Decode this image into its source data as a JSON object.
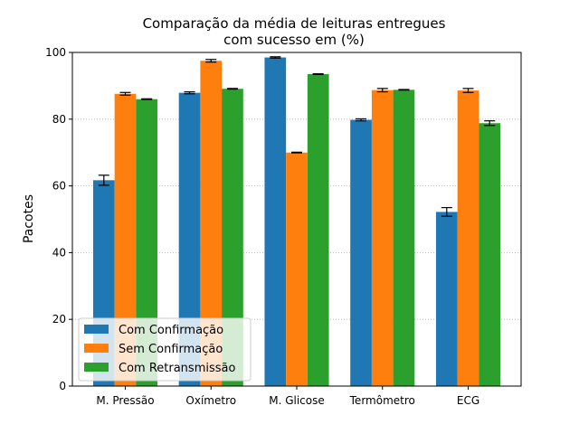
{
  "chart_data": {
    "type": "bar",
    "title_line1": "Comparação da média de leituras entregues",
    "title_line2": "com sucesso em (%)",
    "xlabel": "",
    "ylabel": "Pacotes",
    "ylim": [
      0,
      100
    ],
    "yticks": [
      0,
      20,
      40,
      60,
      80,
      100
    ],
    "grid": "y-dotted",
    "legend_position": "lower-left",
    "categories": [
      "M. Pressão",
      "Oxímetro",
      "M. Glicose",
      "Termômetro",
      "ECG"
    ],
    "series": [
      {
        "name": "Com Confirmação",
        "color": "#1f77b4",
        "values": [
          61.7,
          87.9,
          98.5,
          79.8,
          52.2
        ],
        "errors": [
          1.5,
          0.3,
          0.2,
          0.3,
          1.3
        ]
      },
      {
        "name": "Sem Confirmação",
        "color": "#ff7f0e",
        "values": [
          87.6,
          97.5,
          70.0,
          88.7,
          88.6
        ],
        "errors": [
          0.4,
          0.4,
          0.1,
          0.5,
          0.6
        ]
      },
      {
        "name": "Com Retransmissão",
        "color": "#2ca02c",
        "values": [
          86.0,
          89.1,
          93.5,
          88.8,
          78.8
        ],
        "errors": [
          0.1,
          0.1,
          0.1,
          0.1,
          0.7
        ]
      }
    ]
  }
}
